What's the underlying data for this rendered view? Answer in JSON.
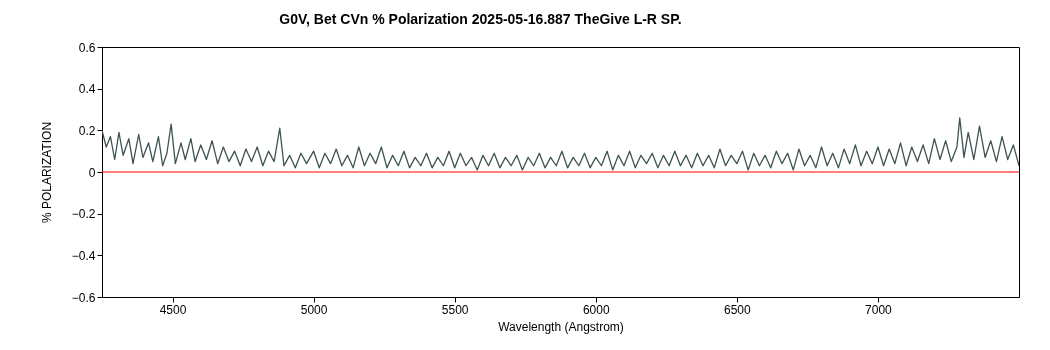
{
  "chart_data": {
    "type": "line",
    "title": "G0V, Bet CVn  % Polarization  2025-05-16.887   TheGive  L-R  SP.",
    "xlabel": "Wavelength (Angstrom)",
    "ylabel": "% POLARIZATION",
    "xlim": [
      4250,
      7500
    ],
    "xticks": [
      4500,
      5000,
      5500,
      6000,
      6500,
      7000
    ],
    "ylim": [
      -0.6,
      0.6
    ],
    "yticks": [
      -0.6,
      -0.4,
      -0.2,
      0,
      0.2,
      0.4,
      0.6
    ],
    "grid": false,
    "marker": "none",
    "line_style": "solid",
    "ref_lines": [
      {
        "axis": "y",
        "value": 0,
        "color": "#ff0000"
      }
    ],
    "series": [
      {
        "color": "#3d5453",
        "x": [
          4250,
          4265,
          4280,
          4295,
          4310,
          4325,
          4345,
          4360,
          4380,
          4395,
          4415,
          4430,
          4450,
          4465,
          4480,
          4495,
          4510,
          4530,
          4545,
          4565,
          4580,
          4600,
          4620,
          4640,
          4660,
          4680,
          4700,
          4720,
          4740,
          4760,
          4780,
          4800,
          4820,
          4840,
          4860,
          4880,
          4895,
          4915,
          4935,
          4955,
          4975,
          5000,
          5020,
          5040,
          5060,
          5080,
          5100,
          5120,
          5140,
          5160,
          5180,
          5200,
          5220,
          5240,
          5260,
          5280,
          5300,
          5320,
          5340,
          5360,
          5380,
          5400,
          5420,
          5440,
          5460,
          5480,
          5500,
          5520,
          5540,
          5560,
          5580,
          5600,
          5620,
          5640,
          5660,
          5680,
          5700,
          5720,
          5740,
          5760,
          5780,
          5800,
          5820,
          5840,
          5860,
          5880,
          5900,
          5920,
          5940,
          5960,
          5980,
          6000,
          6020,
          6040,
          6060,
          6080,
          6100,
          6120,
          6140,
          6160,
          6180,
          6200,
          6220,
          6240,
          6260,
          6280,
          6300,
          6320,
          6340,
          6360,
          6380,
          6400,
          6420,
          6440,
          6460,
          6480,
          6500,
          6520,
          6540,
          6560,
          6580,
          6600,
          6620,
          6640,
          6660,
          6680,
          6700,
          6720,
          6740,
          6760,
          6780,
          6800,
          6820,
          6840,
          6860,
          6880,
          6900,
          6920,
          6940,
          6960,
          6980,
          7000,
          7020,
          7040,
          7060,
          7080,
          7100,
          7120,
          7140,
          7160,
          7180,
          7200,
          7220,
          7240,
          7260,
          7280,
          7290,
          7305,
          7320,
          7340,
          7360,
          7380,
          7400,
          7420,
          7440,
          7460,
          7480,
          7500
        ],
        "values": [
          0.2,
          0.12,
          0.17,
          0.06,
          0.19,
          0.08,
          0.16,
          0.04,
          0.18,
          0.07,
          0.14,
          0.05,
          0.17,
          0.03,
          0.09,
          0.23,
          0.04,
          0.14,
          0.06,
          0.16,
          0.05,
          0.13,
          0.06,
          0.15,
          0.04,
          0.12,
          0.05,
          0.1,
          0.03,
          0.11,
          0.05,
          0.12,
          0.03,
          0.1,
          0.05,
          0.21,
          0.03,
          0.08,
          0.02,
          0.09,
          0.04,
          0.1,
          0.02,
          0.09,
          0.04,
          0.11,
          0.03,
          0.08,
          0.02,
          0.12,
          0.03,
          0.09,
          0.04,
          0.12,
          0.02,
          0.08,
          0.03,
          0.1,
          0.02,
          0.07,
          0.03,
          0.09,
          0.02,
          0.07,
          0.03,
          0.1,
          0.02,
          0.09,
          0.03,
          0.07,
          0.01,
          0.08,
          0.03,
          0.09,
          0.02,
          0.07,
          0.03,
          0.08,
          0.01,
          0.07,
          0.03,
          0.09,
          0.02,
          0.07,
          0.03,
          0.1,
          0.02,
          0.07,
          0.03,
          0.09,
          0.02,
          0.07,
          0.03,
          0.1,
          0.01,
          0.08,
          0.03,
          0.1,
          0.02,
          0.08,
          0.04,
          0.09,
          0.02,
          0.08,
          0.03,
          0.1,
          0.03,
          0.08,
          0.02,
          0.09,
          0.03,
          0.08,
          0.02,
          0.11,
          0.03,
          0.08,
          0.04,
          0.1,
          0.01,
          0.09,
          0.03,
          0.08,
          0.02,
          0.1,
          0.04,
          0.09,
          0.01,
          0.11,
          0.03,
          0.08,
          0.02,
          0.12,
          0.03,
          0.09,
          0.02,
          0.11,
          0.04,
          0.13,
          0.03,
          0.1,
          0.04,
          0.12,
          0.03,
          0.11,
          0.04,
          0.14,
          0.03,
          0.12,
          0.05,
          0.13,
          0.04,
          0.16,
          0.06,
          0.15,
          0.05,
          0.12,
          0.26,
          0.07,
          0.19,
          0.06,
          0.22,
          0.07,
          0.15,
          0.05,
          0.17,
          0.06,
          0.13,
          0.03
        ]
      }
    ]
  }
}
